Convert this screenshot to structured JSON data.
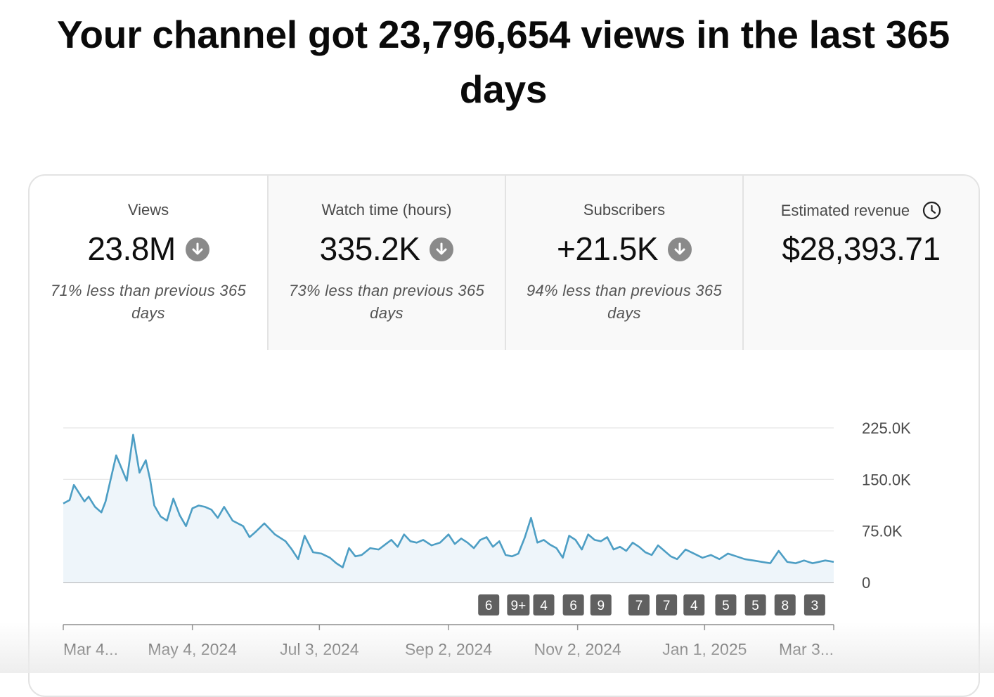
{
  "headline": "Your channel got 23,796,654 views in the last 365 days",
  "tabs": [
    {
      "label": "Views",
      "value": "23.8M",
      "trend": "down",
      "note": "71% less than previous 365 days",
      "selected": true
    },
    {
      "label": "Watch time (hours)",
      "value": "335.2K",
      "trend": "down",
      "note": "73% less than previous 365 days",
      "selected": false
    },
    {
      "label": "Subscribers",
      "value": "+21.5K",
      "trend": "down",
      "note": "94% less than previous 365 days",
      "selected": false
    },
    {
      "label": "Estimated revenue",
      "value": "$28,393.71",
      "trend": "",
      "note": "",
      "selected": false
    }
  ],
  "colors": {
    "line": "#4d9ec4",
    "area": "#eef5fa",
    "marker": "#606060",
    "grid": "#e5e5e5"
  },
  "chart_data": {
    "type": "area",
    "x_range": [
      "Mar 4, 2024",
      "Mar 3, 2025"
    ],
    "yticks": [
      {
        "value": 0,
        "label": "0"
      },
      {
        "value": 75000,
        "label": "75.0K"
      },
      {
        "value": 150000,
        "label": "150.0K"
      },
      {
        "value": 225000,
        "label": "225.0K"
      }
    ],
    "ylim": [
      0,
      225000
    ],
    "xticks": [
      {
        "day": 0,
        "label": "Mar 4..."
      },
      {
        "day": 61,
        "label": "May 4, 2024"
      },
      {
        "day": 121,
        "label": "Jul 3, 2024"
      },
      {
        "day": 182,
        "label": "Sep 2, 2024"
      },
      {
        "day": 243,
        "label": "Nov 2, 2024"
      },
      {
        "day": 303,
        "label": "Jan 1, 2025"
      },
      {
        "day": 364,
        "label": "Mar 3..."
      }
    ],
    "x_day": [
      0,
      3,
      5,
      10,
      12,
      15,
      18,
      20,
      25,
      30,
      33,
      36,
      39,
      41,
      43,
      46,
      49,
      52,
      55,
      58,
      61,
      64,
      67,
      70,
      73,
      76,
      80,
      85,
      88,
      91,
      95,
      100,
      105,
      108,
      111,
      114,
      118,
      122,
      126,
      129,
      132,
      135,
      138,
      141,
      145,
      149,
      152,
      155,
      158,
      161,
      164,
      167,
      170,
      174,
      178,
      182,
      185,
      188,
      191,
      194,
      197,
      200,
      203,
      206,
      209,
      212,
      215,
      218,
      221,
      224,
      227,
      230,
      233,
      236,
      239,
      242,
      245,
      248,
      251,
      254,
      257,
      260,
      263,
      266,
      269,
      272,
      275,
      278,
      281,
      284,
      287,
      290,
      294,
      298,
      302,
      306,
      310,
      314,
      318,
      322,
      326,
      330,
      334,
      338,
      342,
      346,
      350,
      354,
      357,
      360,
      364
    ],
    "views": [
      115000,
      120000,
      142000,
      118000,
      125000,
      110000,
      102000,
      118000,
      185000,
      148000,
      215000,
      160000,
      178000,
      150000,
      112000,
      96000,
      90000,
      122000,
      98000,
      82000,
      108000,
      112000,
      110000,
      106000,
      94000,
      110000,
      90000,
      82000,
      66000,
      74000,
      86000,
      70000,
      60000,
      48000,
      34000,
      68000,
      44000,
      42000,
      36000,
      28000,
      22000,
      50000,
      38000,
      40000,
      50000,
      48000,
      55000,
      62000,
      52000,
      70000,
      60000,
      58000,
      62000,
      54000,
      58000,
      70000,
      56000,
      64000,
      58000,
      50000,
      62000,
      66000,
      52000,
      60000,
      40000,
      38000,
      42000,
      65000,
      94000,
      58000,
      62000,
      55000,
      50000,
      36000,
      68000,
      62000,
      48000,
      70000,
      62000,
      60000,
      66000,
      48000,
      52000,
      46000,
      58000,
      52000,
      44000,
      40000,
      54000,
      46000,
      38000,
      34000,
      48000,
      42000,
      36000,
      40000,
      34000,
      42000,
      38000,
      34000,
      32000,
      30000,
      28000,
      46000,
      30000,
      28000,
      32000,
      28000,
      30000,
      32000,
      30000
    ],
    "markers": [
      {
        "label": "6",
        "day": 201
      },
      {
        "label": "9+",
        "day": 215
      },
      {
        "label": "4",
        "day": 227
      },
      {
        "label": "6",
        "day": 241
      },
      {
        "label": "9",
        "day": 254
      },
      {
        "label": "7",
        "day": 272
      },
      {
        "label": "7",
        "day": 285
      },
      {
        "label": "4",
        "day": 298
      },
      {
        "label": "5",
        "day": 313
      },
      {
        "label": "5",
        "day": 327
      },
      {
        "label": "8",
        "day": 341
      },
      {
        "label": "3",
        "day": 355
      }
    ]
  }
}
